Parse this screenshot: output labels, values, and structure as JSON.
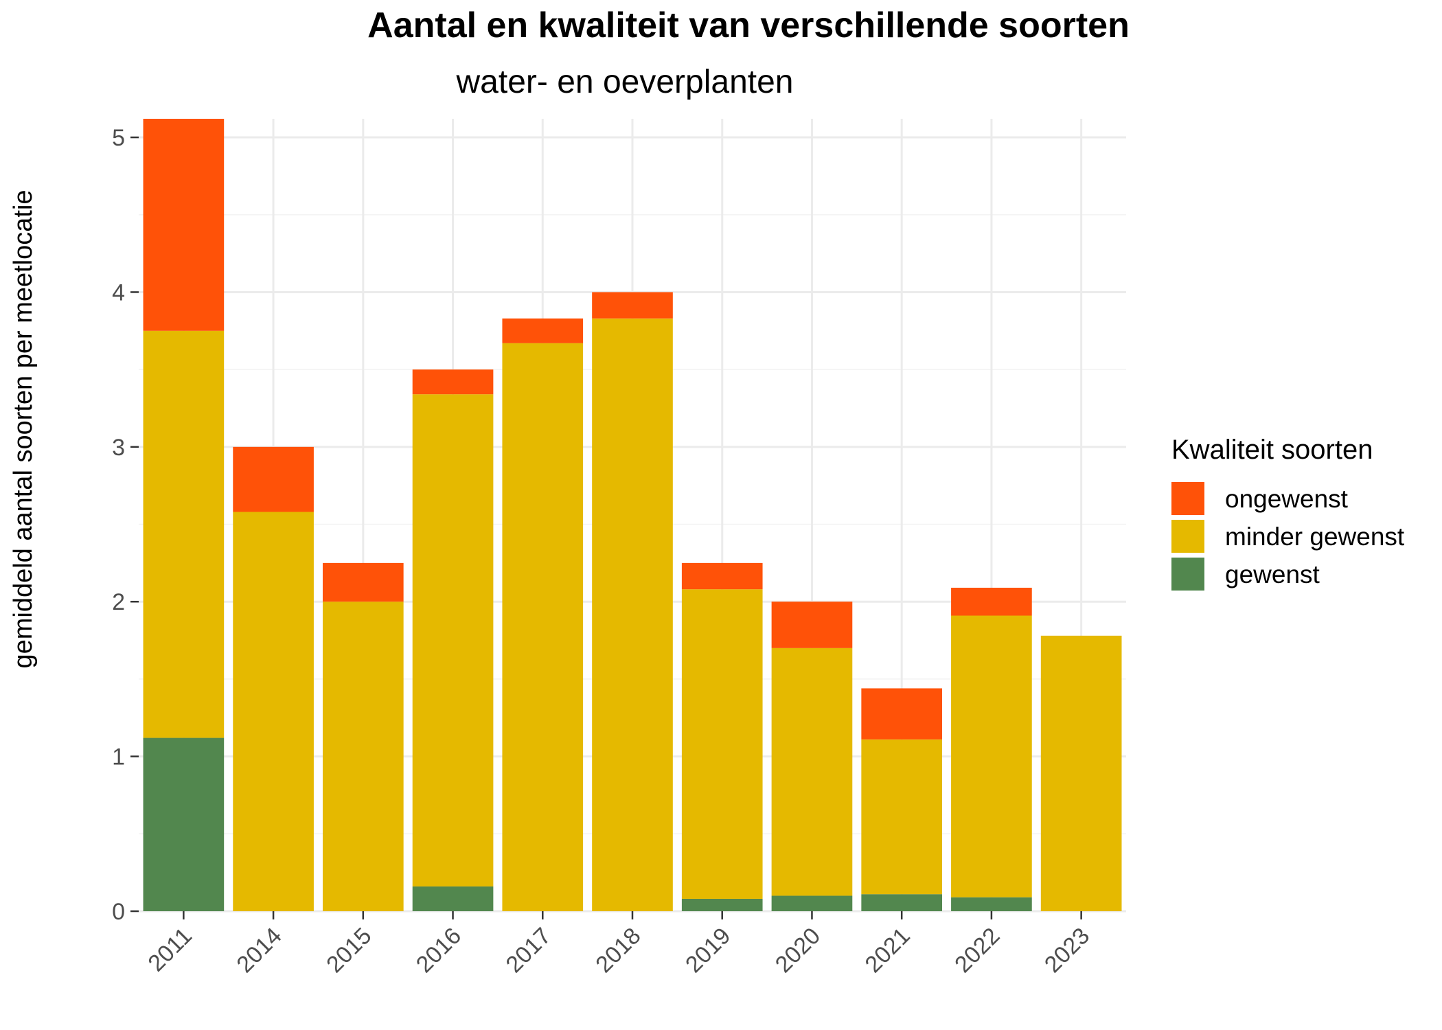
{
  "chart_data": {
    "type": "bar",
    "stacked": true,
    "title": "Aantal en kwaliteit van verschillende soorten",
    "subtitle": "water- en oeverplanten",
    "xlabel": "",
    "ylabel": "gemiddeld aantal soorten per meetlocatie",
    "ylim": [
      0,
      5.12
    ],
    "yticks": [
      "0",
      "1",
      "2",
      "3",
      "4",
      "5"
    ],
    "grid": true,
    "categories": [
      "2011",
      "2014",
      "2015",
      "2016",
      "2017",
      "2018",
      "2019",
      "2020",
      "2021",
      "2022",
      "2023"
    ],
    "series": [
      {
        "name": "gewenst",
        "color": "#52874e",
        "values": [
          1.12,
          0,
          0,
          0.16,
          0,
          0,
          0.08,
          0.1,
          0.11,
          0.09,
          0
        ]
      },
      {
        "name": "minder gewenst",
        "color": "#e5b900",
        "values": [
          2.63,
          2.58,
          2.0,
          3.18,
          3.67,
          3.83,
          2.0,
          1.6,
          1.0,
          1.82,
          1.78
        ]
      },
      {
        "name": "ongewenst",
        "color": "#ff5208",
        "values": [
          1.37,
          0.42,
          0.25,
          0.16,
          0.16,
          0.17,
          0.17,
          0.3,
          0.33,
          0.18,
          0
        ]
      }
    ],
    "legend": {
      "title": "Kwaliteit soorten",
      "position": "right",
      "order": [
        "ongewenst",
        "minder gewenst",
        "gewenst"
      ]
    }
  }
}
